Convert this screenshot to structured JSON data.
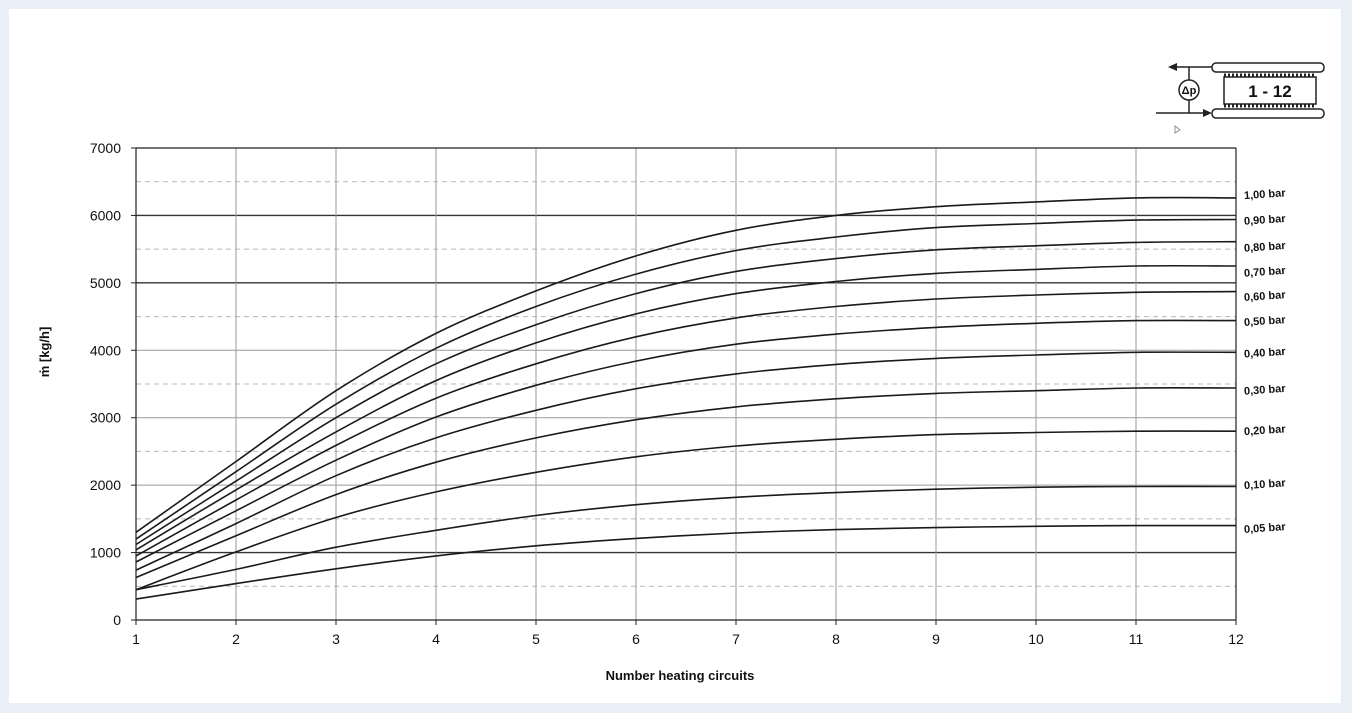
{
  "chart_data": {
    "type": "line",
    "title": "",
    "xlabel": "Number heating circuits",
    "ylabel": "ṁ [kg/h]",
    "xlim": [
      1,
      12
    ],
    "ylim": [
      0,
      7000
    ],
    "x_ticks": [
      1,
      2,
      3,
      4,
      5,
      6,
      7,
      8,
      9,
      10,
      11,
      12
    ],
    "y_ticks": [
      0,
      1000,
      2000,
      3000,
      4000,
      5000,
      6000,
      7000
    ],
    "y_ticks_text": [
      "0",
      "1000",
      "2000",
      "3000",
      "4000",
      "5000",
      "6000",
      "7000"
    ],
    "grid": {
      "vertical": true,
      "horizontal_major": true,
      "horizontal_minor_dashed": true
    },
    "series": [
      {
        "name": "1,00 bar",
        "x": [
          1,
          2,
          3,
          4,
          5,
          6,
          7,
          8,
          9,
          10,
          11,
          12
        ],
        "values": [
          1300,
          2350,
          3400,
          4250,
          4880,
          5400,
          5780,
          6000,
          6130,
          6200,
          6260,
          6260
        ]
      },
      {
        "name": "0,90 bar",
        "x": [
          1,
          2,
          3,
          4,
          5,
          6,
          7,
          8,
          9,
          10,
          11,
          12
        ],
        "values": [
          1200,
          2200,
          3200,
          4030,
          4650,
          5130,
          5480,
          5680,
          5820,
          5880,
          5930,
          5940
        ]
      },
      {
        "name": "0,80 bar",
        "x": [
          1,
          2,
          3,
          4,
          5,
          6,
          7,
          8,
          9,
          10,
          11,
          12
        ],
        "values": [
          1120,
          2060,
          3000,
          3800,
          4380,
          4840,
          5170,
          5360,
          5490,
          5550,
          5600,
          5610
        ]
      },
      {
        "name": "0,70 bar",
        "x": [
          1,
          2,
          3,
          4,
          5,
          6,
          7,
          8,
          9,
          10,
          11,
          12
        ],
        "values": [
          1040,
          1930,
          2790,
          3550,
          4110,
          4540,
          4840,
          5020,
          5140,
          5200,
          5250,
          5250
        ]
      },
      {
        "name": "0,60 bar",
        "x": [
          1,
          2,
          3,
          4,
          5,
          6,
          7,
          8,
          9,
          10,
          11,
          12
        ],
        "values": [
          950,
          1780,
          2590,
          3290,
          3800,
          4200,
          4480,
          4650,
          4760,
          4820,
          4860,
          4870
        ]
      },
      {
        "name": "0,50 bar",
        "x": [
          1,
          2,
          3,
          4,
          5,
          6,
          7,
          8,
          9,
          10,
          11,
          12
        ],
        "values": [
          860,
          1620,
          2370,
          3010,
          3480,
          3840,
          4090,
          4240,
          4340,
          4400,
          4440,
          4440
        ]
      },
      {
        "name": "0,40 bar",
        "x": [
          1,
          2,
          3,
          4,
          5,
          6,
          7,
          8,
          9,
          10,
          11,
          12
        ],
        "values": [
          740,
          1430,
          2140,
          2700,
          3110,
          3430,
          3650,
          3790,
          3880,
          3930,
          3970,
          3970
        ]
      },
      {
        "name": "0,30 bar",
        "x": [
          1,
          2,
          3,
          4,
          5,
          6,
          7,
          8,
          9,
          10,
          11,
          12
        ],
        "values": [
          630,
          1250,
          1860,
          2340,
          2700,
          2970,
          3160,
          3280,
          3360,
          3400,
          3440,
          3440
        ]
      },
      {
        "name": "0,20 bar",
        "x": [
          1,
          2,
          3,
          4,
          5,
          6,
          7,
          8,
          9,
          10,
          11,
          12
        ],
        "values": [
          450,
          1010,
          1520,
          1900,
          2190,
          2420,
          2580,
          2680,
          2750,
          2780,
          2800,
          2800
        ]
      },
      {
        "name": "0,10 bar",
        "x": [
          1,
          2,
          3,
          4,
          5,
          6,
          7,
          8,
          9,
          10,
          11,
          12
        ],
        "values": [
          450,
          750,
          1080,
          1330,
          1550,
          1710,
          1820,
          1890,
          1940,
          1970,
          1980,
          1980
        ]
      },
      {
        "name": "0,05 bar",
        "x": [
          1,
          2,
          3,
          4,
          5,
          6,
          7,
          8,
          9,
          10,
          11,
          12
        ],
        "values": [
          310,
          540,
          760,
          950,
          1100,
          1210,
          1290,
          1340,
          1370,
          1390,
          1400,
          1400
        ]
      }
    ],
    "label_positions_data_y": [
      6300,
      5920,
      5520,
      5150,
      4790,
      4420,
      3950,
      3400,
      2800,
      2000,
      1350
    ],
    "legend": {
      "symbol": "Δp",
      "text": "1 - 12"
    }
  }
}
